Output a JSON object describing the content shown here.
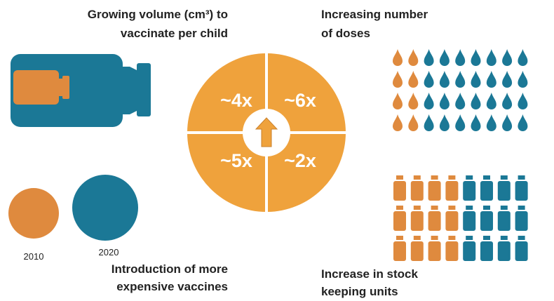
{
  "panels": {
    "volume": {
      "title": [
        "Growing volume (cm³) to",
        "vaccinate per child"
      ]
    },
    "doses": {
      "title": [
        "Increasing number",
        "of doses"
      ]
    },
    "cost": {
      "title": [
        "Introduction of more",
        "expensive vaccines"
      ],
      "years": [
        "2010",
        "2020"
      ]
    },
    "sku": {
      "title": [
        "Increase in stock",
        "keeping units"
      ]
    }
  },
  "center": {
    "quadrants": [
      "~4x",
      "~6x",
      "~5x",
      "~2x"
    ]
  }
}
